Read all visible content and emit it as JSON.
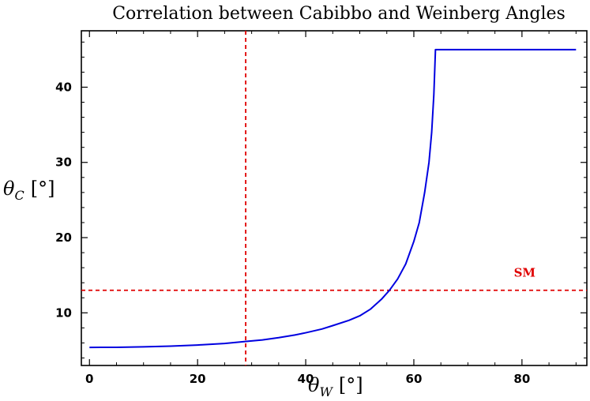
{
  "chart_data": {
    "type": "line",
    "title": "Correlation between Cabibbo and Weinberg Angles",
    "xlabel": {
      "symbol": "θ",
      "subscript": "W",
      "unit": "[°]"
    },
    "ylabel": {
      "symbol": "θ",
      "subscript": "C",
      "unit": "[°]"
    },
    "xlim": [
      -1.5,
      92
    ],
    "ylim": [
      3.0,
      47.5
    ],
    "xticks": [
      0,
      20,
      40,
      60,
      80
    ],
    "yticks": [
      10,
      20,
      30,
      40
    ],
    "grid": false,
    "series": [
      {
        "color": "#0000e0",
        "points": [
          [
            0,
            5.4
          ],
          [
            5,
            5.42
          ],
          [
            10,
            5.48
          ],
          [
            15,
            5.57
          ],
          [
            20,
            5.72
          ],
          [
            25,
            5.93
          ],
          [
            29,
            6.2
          ],
          [
            32,
            6.4
          ],
          [
            35,
            6.7
          ],
          [
            38,
            7.05
          ],
          [
            40,
            7.35
          ],
          [
            43,
            7.85
          ],
          [
            45,
            8.3
          ],
          [
            48,
            9.0
          ],
          [
            50,
            9.6
          ],
          [
            52,
            10.5
          ],
          [
            54,
            11.8
          ],
          [
            55.5,
            13.0
          ],
          [
            57,
            14.5
          ],
          [
            58.5,
            16.5
          ],
          [
            60,
            19.5
          ],
          [
            61,
            22.0
          ],
          [
            62,
            26.0
          ],
          [
            62.8,
            30.0
          ],
          [
            63.3,
            34.0
          ],
          [
            63.7,
            39.0
          ],
          [
            63.9,
            43.0
          ],
          [
            64,
            45
          ],
          [
            70,
            45
          ],
          [
            80,
            45
          ],
          [
            90,
            45
          ]
        ]
      }
    ],
    "reference_lines": [
      {
        "orientation": "vertical",
        "value": 28.9,
        "color": "#e00000",
        "dash": true
      },
      {
        "orientation": "horizontal",
        "value": 13.0,
        "color": "#e00000",
        "dash": true
      }
    ],
    "annotations": [
      {
        "text": "SM",
        "x": 80.5,
        "y": 14.8,
        "color": "#e00000"
      }
    ]
  }
}
